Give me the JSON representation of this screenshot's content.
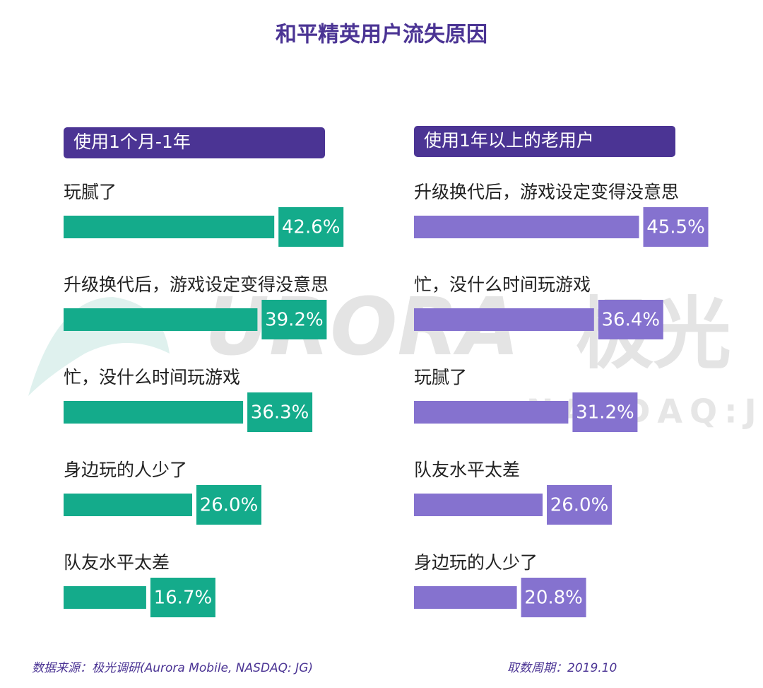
{
  "title": "和平精英用户流失原因",
  "watermark": {
    "brand": "URORA",
    "brand_cn": "极光",
    "ticker": "NASDAQ:JG"
  },
  "chart_data": [
    {
      "type": "bar",
      "title": "使用1个月-1年",
      "categories": [
        "玩腻了",
        "升级换代后，游戏设定变得没意思",
        "忙，没什么时间玩游戏",
        "身边玩的人少了",
        "队友水平太差"
      ],
      "values": [
        42.6,
        39.2,
        36.3,
        26.0,
        16.7
      ],
      "value_labels": [
        "42.6%",
        "39.2%",
        "36.3%",
        "26.0%",
        "16.7%"
      ],
      "color": "#14ab8b"
    },
    {
      "type": "bar",
      "title": "使用1年以上的老用户",
      "categories": [
        "升级换代后，游戏设定变得没意思",
        "忙，没什么时间玩游戏",
        "玩腻了",
        "队友水平太差",
        "身边玩的人少了"
      ],
      "values": [
        45.5,
        36.4,
        31.2,
        26.0,
        20.8
      ],
      "value_labels": [
        "45.5%",
        "36.4%",
        "31.2%",
        "26.0%",
        "20.8%"
      ],
      "color": "#8572cf"
    }
  ],
  "source": "数据来源：极光调研(Aurora Mobile, NASDAQ: JG)",
  "period": "取数周期：2019.10"
}
